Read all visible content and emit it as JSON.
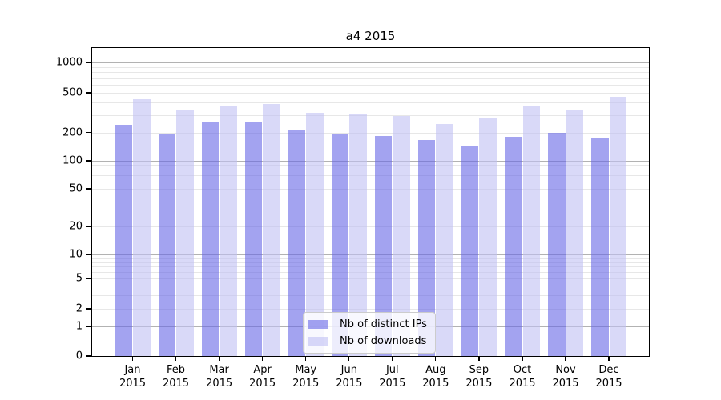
{
  "chart_data": {
    "type": "bar",
    "title": "a4 2015",
    "categories": [
      "Jan",
      "Feb",
      "Mar",
      "Apr",
      "May",
      "Jun",
      "Jul",
      "Aug",
      "Sep",
      "Oct",
      "Nov",
      "Dec"
    ],
    "category_year": "2015",
    "series": [
      {
        "name": "Nb of distinct IPs",
        "color": "rgba(102,102,230,0.6)",
        "color_solid": "#a3a3f0",
        "values": [
          237,
          190,
          255,
          255,
          210,
          195,
          185,
          165,
          142,
          180,
          197,
          176
        ]
      },
      {
        "name": "Nb of downloads",
        "color": "rgba(191,191,243,0.6)",
        "color_solid": "#d9d9f8",
        "values": [
          430,
          340,
          370,
          385,
          315,
          310,
          290,
          245,
          280,
          365,
          335,
          455
        ]
      }
    ],
    "yscale": "symlog",
    "ytick_labels": [
      "1000",
      "500",
      "200",
      "100",
      "50",
      "20",
      "10",
      "5",
      "2",
      "1",
      "0"
    ],
    "ylim": [
      0,
      1300
    ],
    "grid": true,
    "legend_position": "lower-center",
    "grid_major_color": "#b2b2b2",
    "grid_minor_color": "#e7e7e7"
  }
}
